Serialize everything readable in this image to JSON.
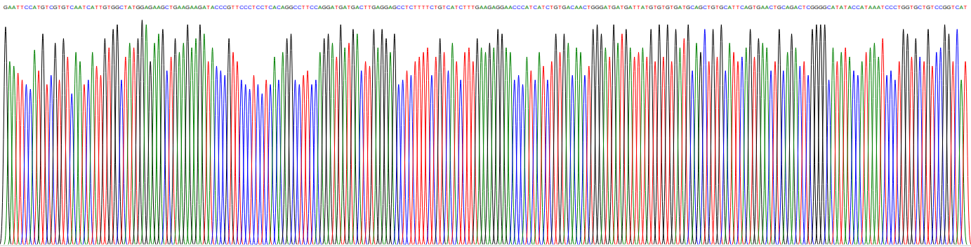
{
  "chart_data": {
    "type": "chromatogram",
    "categories": [
      "G",
      "A",
      "A",
      "T",
      "T",
      "C",
      "C",
      "A",
      "T",
      "G",
      "T",
      "C",
      "G",
      "T",
      "G",
      "T",
      "C",
      "A",
      "A",
      "T",
      "C",
      "A",
      "T",
      "T",
      "G",
      "T",
      "G",
      "G",
      "C",
      "T",
      "A",
      "T",
      "G",
      "G",
      "A",
      "G",
      "A",
      "A",
      "G",
      "C",
      "T",
      "G",
      "A",
      "A",
      "G",
      "A",
      "A",
      "G",
      "A",
      "T",
      "A",
      "C",
      "C",
      "C",
      "G",
      "T",
      "T",
      "C",
      "C",
      "C",
      "T",
      "C",
      "C",
      "T",
      "C",
      "A",
      "C",
      "A",
      "G",
      "G",
      "C",
      "C",
      "T",
      "T",
      "C",
      "C",
      "A",
      "G",
      "G",
      "A",
      "T",
      "G",
      "A",
      "T",
      "G",
      "A",
      "C",
      "T",
      "T",
      "G",
      "A",
      "G",
      "G",
      "A",
      "G",
      "C",
      "C",
      "T",
      "C",
      "T",
      "T",
      "T",
      "T",
      "C",
      "T",
      "G",
      "T",
      "C",
      "A",
      "T",
      "C",
      "T",
      "T",
      "T",
      "G",
      "A",
      "A",
      "G",
      "A",
      "G",
      "G",
      "A",
      "A",
      "C",
      "C",
      "C",
      "A",
      "T",
      "C",
      "A",
      "T",
      "C",
      "T",
      "G",
      "T",
      "G",
      "A",
      "C",
      "A",
      "A",
      "C",
      "T",
      "G",
      "G",
      "G",
      "A",
      "T",
      "G",
      "A",
      "T",
      "G",
      "A",
      "T",
      "T",
      "A",
      "T",
      "G",
      "T",
      "G",
      "T",
      "G",
      "T",
      "G",
      "A",
      "T",
      "G",
      "C",
      "A",
      "G",
      "C",
      "T",
      "G",
      "T",
      "G",
      "C",
      "A",
      "T",
      "T",
      "C",
      "A",
      "G",
      "T",
      "G",
      "A",
      "A",
      "C",
      "T",
      "G",
      "C",
      "A",
      "G",
      "A",
      "C",
      "T",
      "C",
      "G",
      "G",
      "G",
      "G",
      "C",
      "A",
      "T",
      "A",
      "T",
      "A",
      "C",
      "C",
      "A",
      "T",
      "A",
      "A",
      "A",
      "T",
      "C",
      "C",
      "C",
      "T",
      "G",
      "G",
      "T",
      "G",
      "C",
      "T",
      "G",
      "T",
      "C",
      "C",
      "G",
      "G",
      "T",
      "C",
      "A",
      "T"
    ],
    "values": [
      95,
      80,
      78,
      75,
      72,
      70,
      68,
      85,
      76,
      92,
      70,
      74,
      88,
      72,
      90,
      82,
      66,
      84,
      80,
      70,
      72,
      84,
      78,
      74,
      90,
      86,
      94,
      96,
      72,
      82,
      88,
      86,
      90,
      98,
      96,
      80,
      88,
      92,
      94,
      76,
      82,
      90,
      84,
      88,
      96,
      86,
      90,
      96,
      92,
      80,
      86,
      78,
      76,
      74,
      90,
      84,
      80,
      72,
      70,
      68,
      74,
      70,
      66,
      72,
      70,
      82,
      72,
      84,
      90,
      92,
      72,
      70,
      74,
      76,
      70,
      72,
      84,
      90,
      92,
      88,
      82,
      96,
      86,
      88,
      94,
      92,
      76,
      80,
      78,
      94,
      86,
      94,
      90,
      84,
      92,
      70,
      72,
      76,
      74,
      80,
      82,
      84,
      86,
      74,
      82,
      90,
      84,
      76,
      88,
      80,
      72,
      84,
      86,
      80,
      90,
      86,
      84,
      88,
      86,
      94,
      92,
      86,
      84,
      72,
      74,
      70,
      82,
      76,
      72,
      84,
      78,
      72,
      80,
      92,
      84,
      92,
      88,
      74,
      86,
      84,
      74,
      78,
      94,
      96,
      92,
      86,
      82,
      96,
      88,
      92,
      94,
      86,
      82,
      84,
      86,
      82,
      94,
      80,
      96,
      82,
      96,
      80,
      94,
      86,
      90,
      96,
      76,
      88,
      84,
      94,
      80,
      94,
      82,
      96,
      76,
      88,
      84,
      80,
      82,
      86,
      94,
      82,
      90,
      88,
      86,
      76,
      80,
      94,
      76,
      84,
      92,
      86,
      78,
      80,
      74,
      94,
      96,
      96,
      96,
      72,
      86,
      80,
      84,
      86,
      82,
      76,
      74,
      80,
      84,
      86,
      88,
      82,
      90,
      74,
      76,
      72,
      80,
      94,
      92,
      82,
      90,
      82,
      80,
      94,
      78,
      84,
      86,
      96,
      92,
      80,
      94,
      72,
      80
    ],
    "colors": [
      "black",
      "green",
      "green",
      "red",
      "red",
      "blue",
      "blue",
      "green",
      "red",
      "black",
      "red",
      "blue",
      "black",
      "red",
      "black",
      "red",
      "blue",
      "green",
      "green",
      "red",
      "blue",
      "green",
      "red",
      "red",
      "black",
      "red",
      "black",
      "black",
      "blue",
      "red",
      "green",
      "red",
      "black",
      "black",
      "green",
      "black",
      "green",
      "green",
      "black",
      "blue",
      "red",
      "black",
      "green",
      "green",
      "black",
      "green",
      "green",
      "black",
      "green",
      "red",
      "green",
      "blue",
      "blue",
      "blue",
      "black",
      "red",
      "red",
      "blue",
      "blue",
      "blue",
      "red",
      "blue",
      "blue",
      "red",
      "blue",
      "green",
      "blue",
      "green",
      "black",
      "black",
      "blue",
      "blue",
      "red",
      "red",
      "blue",
      "blue",
      "green",
      "black",
      "black",
      "green",
      "red",
      "black",
      "green",
      "red",
      "black",
      "green",
      "blue",
      "red",
      "red",
      "black",
      "green",
      "black",
      "black",
      "green",
      "black",
      "blue",
      "blue",
      "red",
      "blue",
      "red",
      "red",
      "red",
      "red",
      "blue",
      "red",
      "black",
      "red",
      "blue",
      "green",
      "red",
      "blue",
      "red",
      "red",
      "red",
      "black",
      "green",
      "green",
      "black",
      "green",
      "black",
      "black",
      "green",
      "green",
      "blue",
      "blue",
      "blue",
      "green",
      "red",
      "blue",
      "green",
      "red",
      "blue",
      "red",
      "black",
      "red",
      "black",
      "green",
      "blue",
      "green",
      "green",
      "blue",
      "red",
      "black",
      "black",
      "black",
      "green",
      "red",
      "black",
      "green",
      "red",
      "black",
      "green",
      "red",
      "red",
      "green",
      "red",
      "black",
      "red",
      "black",
      "red",
      "black",
      "red",
      "black",
      "green",
      "red",
      "black",
      "blue",
      "green",
      "black",
      "blue",
      "red",
      "black",
      "red",
      "black",
      "blue",
      "green",
      "red",
      "red",
      "blue",
      "green",
      "black",
      "red",
      "black",
      "green",
      "green",
      "blue",
      "red",
      "black",
      "blue",
      "green",
      "black",
      "green",
      "blue",
      "red",
      "blue",
      "black",
      "black",
      "black",
      "black",
      "blue",
      "green",
      "red",
      "green",
      "red",
      "green",
      "blue",
      "blue",
      "green",
      "red",
      "green",
      "green",
      "green",
      "red",
      "blue",
      "blue",
      "blue",
      "red",
      "black",
      "black",
      "red",
      "black",
      "blue",
      "red",
      "black",
      "red",
      "blue",
      "blue",
      "black",
      "black",
      "red",
      "blue",
      "green",
      "red"
    ],
    "ylim": [
      0,
      100
    ],
    "tick_labels": false,
    "grid": false
  }
}
